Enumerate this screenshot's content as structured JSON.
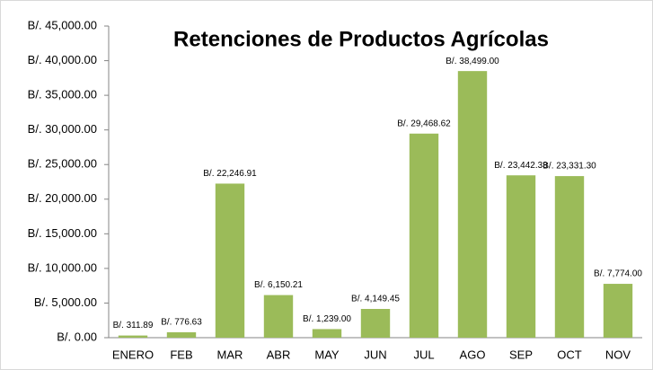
{
  "chart_data": {
    "type": "bar",
    "title": "Retenciones de Productos Agrícolas",
    "categories": [
      "ENERO",
      "FEB",
      "MAR",
      "ABR",
      "MAY",
      "JUN",
      "JUL",
      "AGO",
      "SEP",
      "OCT",
      "NOV"
    ],
    "values": [
      311.89,
      776.63,
      22246.91,
      6150.21,
      1239.0,
      4149.45,
      29468.62,
      38499.0,
      23442.33,
      23331.3,
      7774.0
    ],
    "value_labels": [
      "B/. 311.89",
      "B/. 776.63",
      "B/. 22,246.91",
      "B/. 6,150.21",
      "B/. 1,239.00",
      "B/. 4,149.45",
      "B/. 29,468.62",
      "B/. 38,499.00",
      "B/. 23,442.33",
      "B/. 23,331.30",
      "B/. 7,774.00"
    ],
    "color": "#9bbb59",
    "ylim": [
      0,
      45000
    ],
    "yticks": [
      {
        "value": 0,
        "label": "B/. 0.00"
      },
      {
        "value": 5000,
        "label": "B/. 5,000.00"
      },
      {
        "value": 10000,
        "label": "B/. 10,000.00"
      },
      {
        "value": 15000,
        "label": "B/. 15,000.00"
      },
      {
        "value": 20000,
        "label": "B/. 20,000.00"
      },
      {
        "value": 25000,
        "label": "B/. 25,000.00"
      },
      {
        "value": 30000,
        "label": "B/. 30,000.00"
      },
      {
        "value": 35000,
        "label": "B/. 35,000.00"
      },
      {
        "value": 40000,
        "label": "B/. 40,000.00"
      },
      {
        "value": 45000,
        "label": "B/. 45,000.00"
      }
    ],
    "grid": false
  }
}
